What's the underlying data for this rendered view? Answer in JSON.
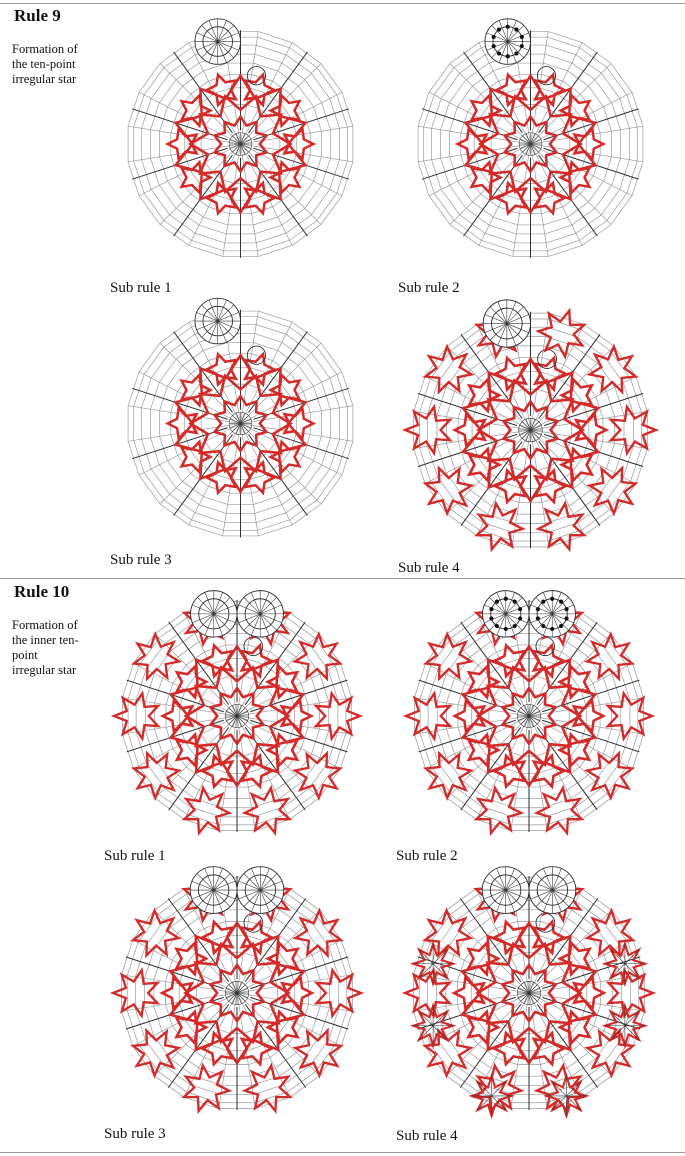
{
  "rules": [
    {
      "title": "Rule 9",
      "description": "Formation of the ten-point irregular star",
      "figures": [
        {
          "caption": "Sub rule 1",
          "outer_stars": false,
          "top_circles": 1,
          "circle_dots": false,
          "corner_stars": false
        },
        {
          "caption": "Sub rule 2",
          "outer_stars": false,
          "top_circles": 1,
          "circle_dots": true,
          "corner_stars": false
        },
        {
          "caption": "Sub rule 3",
          "outer_stars": false,
          "top_circles": 1,
          "circle_dots": false,
          "corner_stars": false
        },
        {
          "caption": "Sub rule 4",
          "outer_stars": true,
          "top_circles": 1,
          "circle_dots": false,
          "corner_stars": false
        }
      ]
    },
    {
      "title": "Rule 10",
      "description": "Formation of the inner ten-point irregular star",
      "figures": [
        {
          "caption": "Sub rule 1",
          "outer_stars": true,
          "top_circles": 2,
          "circle_dots": false,
          "corner_stars": false
        },
        {
          "caption": "Sub rule 2",
          "outer_stars": true,
          "top_circles": 2,
          "circle_dots": true,
          "corner_stars": false
        },
        {
          "caption": "Sub rule 3",
          "outer_stars": true,
          "top_circles": 2,
          "circle_dots": false,
          "corner_stars": false
        },
        {
          "caption": "Sub rule 4",
          "outer_stars": true,
          "top_circles": 2,
          "circle_dots": false,
          "corner_stars": true
        }
      ]
    }
  ],
  "colors": {
    "star": "#d42a2a",
    "grid": "#9a9a9a",
    "axis": "#333333",
    "rule_line": "#9a9a9a"
  }
}
